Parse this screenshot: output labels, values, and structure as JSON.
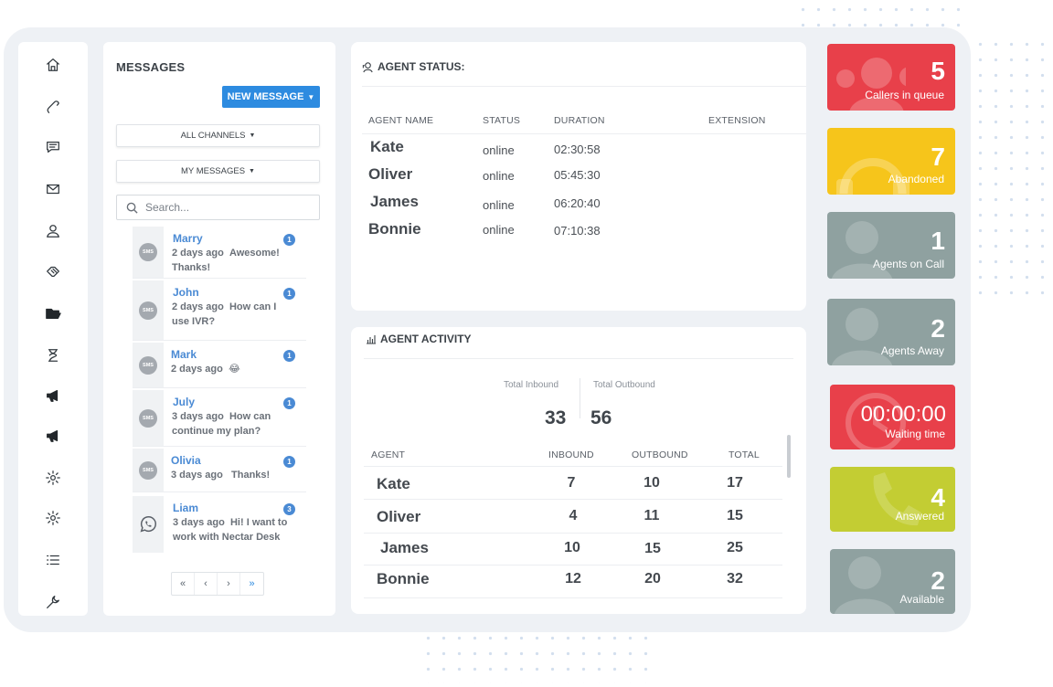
{
  "messages": {
    "title": "MESSAGES",
    "new_button": "NEW MESSAGE",
    "filter_channels": "ALL CHANNELS",
    "filter_messages": "MY MESSAGES",
    "search_placeholder": "Search...",
    "sms_label": "SMS",
    "items": [
      {
        "name": "Marry",
        "time": "2 days ago",
        "text": "Awesome! Thanks!",
        "count": "1",
        "channel": "sms"
      },
      {
        "name": "John",
        "time": "2 days ago",
        "text": "How can I use IVR?",
        "count": "1",
        "channel": "sms"
      },
      {
        "name": "Mark",
        "time": "2 days ago",
        "text": "😂",
        "count": "1",
        "channel": "sms"
      },
      {
        "name": "July",
        "time": "3 days ago",
        "text": "How can continue my plan?",
        "count": "1",
        "channel": "sms"
      },
      {
        "name": "Olivia",
        "time": "3 days ago",
        "text": "Thanks!",
        "count": "1",
        "channel": "sms"
      },
      {
        "name": "Liam",
        "time": "3 days ago",
        "text": "Hi! I want to work with Nectar Desk",
        "count": "3",
        "channel": "whatsapp"
      }
    ],
    "pager": [
      "«",
      "‹",
      "›",
      "»"
    ]
  },
  "agent_status": {
    "title": "AGENT STATUS:",
    "headers": {
      "name": "AGENT NAME",
      "status": "STATUS",
      "duration": "DURATION",
      "extension": "EXTENSION"
    },
    "rows": [
      {
        "name": "Kate",
        "status": "online",
        "duration": "02:30:58"
      },
      {
        "name": "Oliver",
        "status": "online",
        "duration": "05:45:30"
      },
      {
        "name": "James",
        "status": "online",
        "duration": "06:20:40"
      },
      {
        "name": "Bonnie",
        "status": "online",
        "duration": "07:10:38"
      }
    ]
  },
  "agent_activity": {
    "title": "AGENT ACTIVITY",
    "total_inbound_label": "Total Inbound",
    "total_outbound_label": "Total Outbound",
    "total_inbound": "33",
    "total_outbound": "56",
    "headers": {
      "agent": "AGENT",
      "inbound": "INBOUND",
      "outbound": "OUTBOUND",
      "total": "TOTAL"
    },
    "rows": [
      {
        "name": "Kate",
        "inbound": "7",
        "outbound": "10",
        "total": "17"
      },
      {
        "name": "Oliver",
        "inbound": "4",
        "outbound": "11",
        "total": "15"
      },
      {
        "name": "James",
        "inbound": "10",
        "outbound": "15",
        "total": "25"
      },
      {
        "name": "Bonnie",
        "inbound": "12",
        "outbound": "20",
        "total": "32"
      }
    ]
  },
  "tiles": [
    {
      "value": "5",
      "label": "Callers in queue",
      "color": "#e8404a"
    },
    {
      "value": "7",
      "label": "Abandoned",
      "color": "#f6c51b"
    },
    {
      "value": "1",
      "label": "Agents on Call",
      "color": "#8fa1a0"
    },
    {
      "value": "2",
      "label": "Agents Away",
      "color": "#8fa1a0"
    },
    {
      "value": "00:00:00",
      "label": "Waiting time",
      "color": "#e8404a"
    },
    {
      "value": "4",
      "label": "Answered",
      "color": "#c3cd33"
    },
    {
      "value": "2",
      "label": "Available",
      "color": "#8fa1a0"
    }
  ],
  "sidebar_icons": [
    "home-icon",
    "phone-icon",
    "chat-icon",
    "mail-icon",
    "contacts-icon",
    "handshake-icon",
    "folder-icon",
    "hourglass-icon",
    "megaphone-icon",
    "megaphone-icon",
    "gear-icon",
    "gear-icon",
    "list-icon",
    "wrench-icon"
  ]
}
